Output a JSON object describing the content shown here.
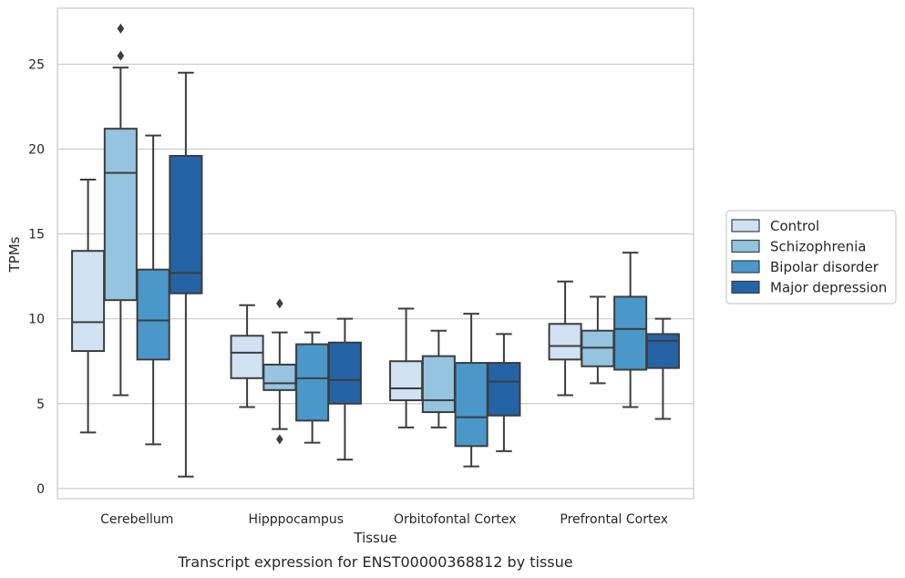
{
  "caption": "Transcript expression for ENST00000368812 by tissue",
  "chart_data": {
    "type": "boxplot",
    "xlabel": "Tissue",
    "ylabel": "TPMs",
    "ylim": [
      -0.6,
      28.3
    ],
    "yticks": [
      0,
      5,
      10,
      15,
      20,
      25
    ],
    "grid": "horizontal",
    "legend_position": "right",
    "categories": [
      "Cerebellum",
      "Hipppocampus",
      "Orbitofontal Cortex",
      "Prefrontal Cortex"
    ],
    "series": [
      {
        "name": "Control",
        "color": "#d0e1f2",
        "boxes": [
          {
            "whisker_low": 3.3,
            "q1": 8.1,
            "median": 9.8,
            "q3": 14.0,
            "whisker_high": 18.2,
            "outliers": []
          },
          {
            "whisker_low": 4.8,
            "q1": 6.5,
            "median": 8.0,
            "q3": 9.0,
            "whisker_high": 10.8,
            "outliers": []
          },
          {
            "whisker_low": 3.6,
            "q1": 5.2,
            "median": 5.9,
            "q3": 7.5,
            "whisker_high": 10.6,
            "outliers": []
          },
          {
            "whisker_low": 5.5,
            "q1": 7.6,
            "median": 8.4,
            "q3": 9.7,
            "whisker_high": 12.2,
            "outliers": []
          }
        ]
      },
      {
        "name": "Schizophrenia",
        "color": "#94c4df",
        "boxes": [
          {
            "whisker_low": 5.5,
            "q1": 11.1,
            "median": 18.6,
            "q3": 21.2,
            "whisker_high": 24.8,
            "outliers": [
              25.5,
              27.1
            ]
          },
          {
            "whisker_low": 3.5,
            "q1": 5.8,
            "median": 6.2,
            "q3": 7.3,
            "whisker_high": 9.2,
            "outliers": [
              2.9,
              10.9
            ]
          },
          {
            "whisker_low": 3.6,
            "q1": 4.5,
            "median": 5.2,
            "q3": 7.8,
            "whisker_high": 9.3,
            "outliers": []
          },
          {
            "whisker_low": 6.2,
            "q1": 7.2,
            "median": 8.3,
            "q3": 9.3,
            "whisker_high": 11.3,
            "outliers": []
          }
        ]
      },
      {
        "name": "Bipolar disorder",
        "color": "#4a98c9",
        "boxes": [
          {
            "whisker_low": 2.6,
            "q1": 7.6,
            "median": 9.9,
            "q3": 12.9,
            "whisker_high": 20.8,
            "outliers": []
          },
          {
            "whisker_low": 2.7,
            "q1": 4.0,
            "median": 6.5,
            "q3": 8.5,
            "whisker_high": 9.2,
            "outliers": []
          },
          {
            "whisker_low": 1.3,
            "q1": 2.5,
            "median": 4.2,
            "q3": 7.4,
            "whisker_high": 10.3,
            "outliers": []
          },
          {
            "whisker_low": 4.8,
            "q1": 7.0,
            "median": 9.4,
            "q3": 11.3,
            "whisker_high": 13.9,
            "outliers": []
          }
        ]
      },
      {
        "name": "Major depression",
        "color": "#2464a6",
        "boxes": [
          {
            "whisker_low": 0.7,
            "q1": 11.5,
            "median": 12.7,
            "q3": 19.6,
            "whisker_high": 24.5,
            "outliers": []
          },
          {
            "whisker_low": 1.7,
            "q1": 5.0,
            "median": 6.4,
            "q3": 8.6,
            "whisker_high": 10.0,
            "outliers": []
          },
          {
            "whisker_low": 2.2,
            "q1": 4.3,
            "median": 6.3,
            "q3": 7.4,
            "whisker_high": 9.1,
            "outliers": []
          },
          {
            "whisker_low": 4.1,
            "q1": 7.1,
            "median": 8.7,
            "q3": 9.1,
            "whisker_high": 10.0,
            "outliers": []
          }
        ]
      }
    ]
  }
}
